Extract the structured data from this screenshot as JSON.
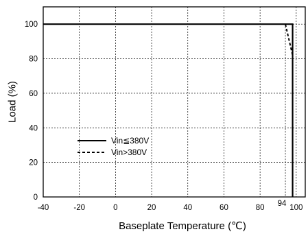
{
  "chart_data": {
    "type": "line",
    "xlabel": "Baseplate Temperature (℃)",
    "ylabel": "Load (%)",
    "xlim": [
      -40,
      105
    ],
    "ylim": [
      0,
      110
    ],
    "xticks": [
      -40,
      -20,
      0,
      20,
      40,
      60,
      80,
      100
    ],
    "yticks": [
      0,
      20,
      40,
      60,
      80,
      100
    ],
    "grid": true,
    "legend_position": "center-left",
    "series": [
      {
        "name": "Vin≦380V",
        "style": "solid",
        "color": "#000000",
        "x": [
          -40,
          98,
          98
        ],
        "y": [
          100,
          100,
          0
        ]
      },
      {
        "name": "Vin>380V",
        "style": "dashed",
        "color": "#000000",
        "x": [
          94,
          98
        ],
        "y": [
          100,
          82
        ]
      }
    ],
    "annotations": [
      {
        "text": "94",
        "x": 94
      }
    ]
  }
}
